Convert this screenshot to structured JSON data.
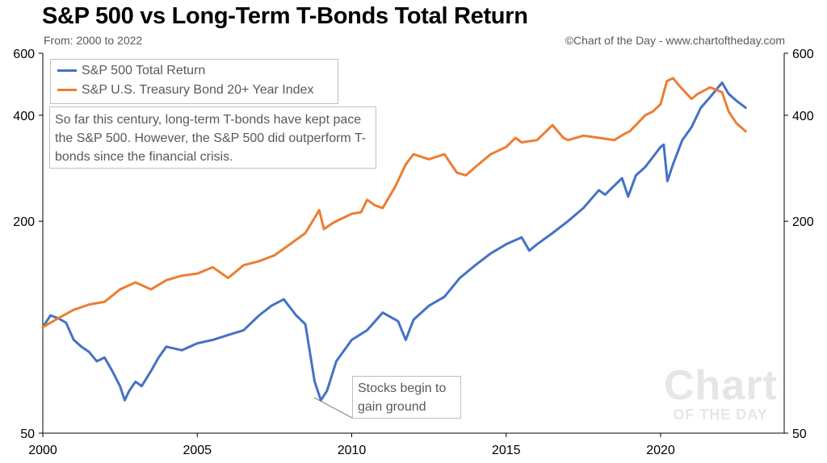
{
  "header": {
    "title": "S&P 500 vs Long-Term T-Bonds Total Return",
    "subtitle": "From: 2000 to 2022",
    "credit": "©Chart of the Day - www.chartoftheday.com"
  },
  "annotations": {
    "note": "So far this century, long-term T-bonds have kept pace the S&P 500. However, the S&P 500 did outperform T-bonds since the financial crisis.",
    "callout": "Stocks begin to gain ground"
  },
  "watermark": {
    "line1": "Chart",
    "line2": "OF THE DAY"
  },
  "colors": {
    "sp500": "#4472c4",
    "tbond": "#ed7d31",
    "axis": "#000000"
  },
  "chart_data": {
    "type": "line",
    "title": "S&P 500 vs Long-Term T-Bonds Total Return",
    "subtitle": "From: 2000 to 2022",
    "y_scale": "log",
    "xlim": [
      2000,
      2024
    ],
    "ylim": [
      50,
      600
    ],
    "x_ticks": [
      2000,
      2005,
      2010,
      2015,
      2020
    ],
    "y_ticks": [
      50,
      200,
      400,
      600
    ],
    "grid": false,
    "legend_position": "top-left",
    "series": [
      {
        "name": "S&P 500 Total Return",
        "color": "#4472c4",
        "x": [
          2000.0,
          2000.25,
          2000.5,
          2000.75,
          2001.0,
          2001.25,
          2001.5,
          2001.75,
          2002.0,
          2002.25,
          2002.5,
          2002.65,
          2002.8,
          2003.0,
          2003.2,
          2003.5,
          2003.75,
          2004.0,
          2004.5,
          2005.0,
          2005.5,
          2006.0,
          2006.5,
          2007.0,
          2007.4,
          2007.8,
          2008.2,
          2008.5,
          2008.8,
          2009.0,
          2009.2,
          2009.5,
          2010.0,
          2010.5,
          2011.0,
          2011.5,
          2011.75,
          2012.0,
          2012.5,
          2013.0,
          2013.5,
          2014.0,
          2014.5,
          2015.0,
          2015.5,
          2015.75,
          2016.0,
          2016.5,
          2017.0,
          2017.5,
          2018.0,
          2018.2,
          2018.75,
          2018.95,
          2019.2,
          2019.5,
          2020.0,
          2020.1,
          2020.22,
          2020.4,
          2020.7,
          2021.0,
          2021.3,
          2021.6,
          2021.99,
          2022.2,
          2022.45,
          2022.6,
          2022.75
        ],
        "values": [
          100,
          108,
          106,
          103,
          92,
          88,
          85,
          80,
          82,
          75,
          68,
          62,
          66,
          70,
          68,
          75,
          82,
          88,
          86,
          90,
          92,
          95,
          98,
          108,
          115,
          120,
          108,
          102,
          70,
          62,
          66,
          80,
          92,
          98,
          110,
          104,
          92,
          105,
          115,
          122,
          138,
          150,
          162,
          172,
          180,
          165,
          172,
          185,
          200,
          218,
          245,
          238,
          265,
          235,
          270,
          285,
          325,
          330,
          260,
          290,
          340,
          370,
          420,
          450,
          495,
          460,
          440,
          430,
          420
        ]
      },
      {
        "name": "S&P U.S. Treasury Bond 20+ Year Index",
        "color": "#ed7d31",
        "x": [
          2000.0,
          2000.5,
          2001.0,
          2001.5,
          2002.0,
          2002.5,
          2003.0,
          2003.5,
          2004.0,
          2004.5,
          2005.0,
          2005.5,
          2006.0,
          2006.5,
          2007.0,
          2007.5,
          2008.0,
          2008.5,
          2008.95,
          2009.1,
          2009.4,
          2009.75,
          2010.0,
          2010.3,
          2010.5,
          2010.75,
          2011.0,
          2011.4,
          2011.75,
          2012.0,
          2012.5,
          2013.0,
          2013.4,
          2013.7,
          2014.0,
          2014.5,
          2015.0,
          2015.3,
          2015.5,
          2016.0,
          2016.5,
          2016.85,
          2017.0,
          2017.5,
          2018.0,
          2018.5,
          2018.85,
          2019.0,
          2019.5,
          2019.75,
          2020.0,
          2020.2,
          2020.4,
          2020.65,
          2021.0,
          2021.2,
          2021.6,
          2021.99,
          2022.2,
          2022.45,
          2022.75
        ],
        "values": [
          100,
          106,
          112,
          116,
          118,
          128,
          134,
          128,
          136,
          140,
          142,
          148,
          138,
          150,
          154,
          160,
          172,
          185,
          215,
          190,
          198,
          205,
          210,
          212,
          230,
          222,
          218,
          250,
          290,
          310,
          300,
          310,
          275,
          270,
          285,
          310,
          325,
          345,
          335,
          340,
          375,
          345,
          340,
          350,
          345,
          340,
          355,
          360,
          400,
          410,
          430,
          500,
          510,
          480,
          445,
          460,
          480,
          465,
          410,
          380,
          360
        ]
      }
    ]
  }
}
